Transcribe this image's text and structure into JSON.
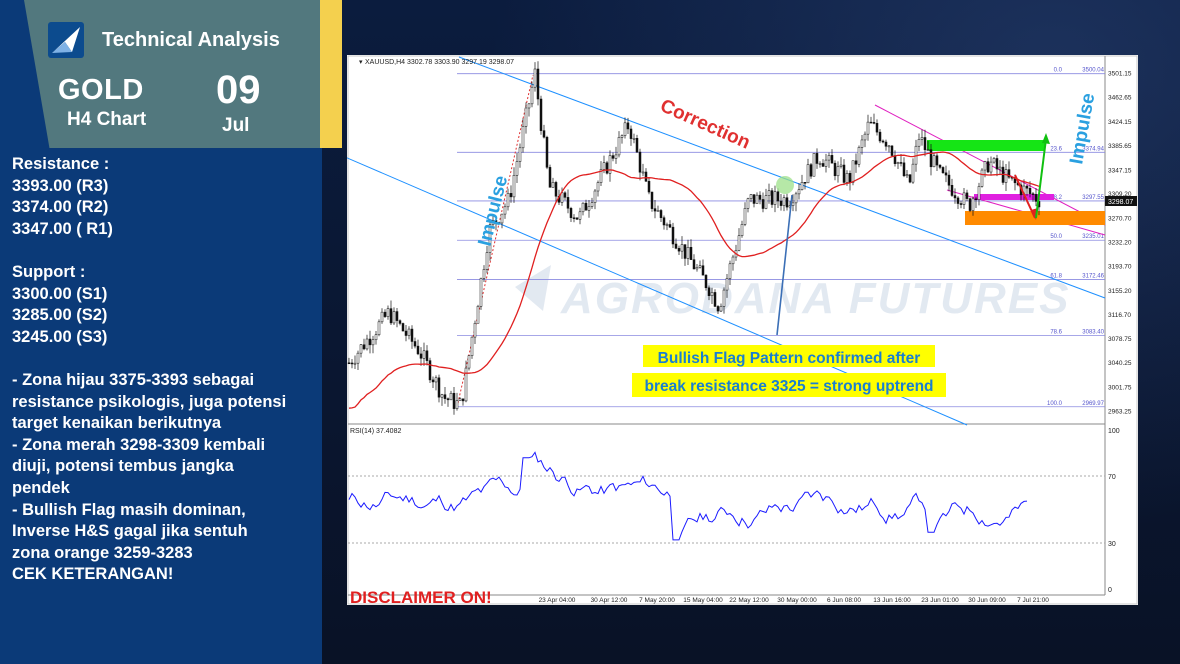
{
  "header": {
    "brand": "Technical Analysis",
    "instrument": "GOLD",
    "timeframe": "H4 Chart",
    "day": "09",
    "month": "Jul",
    "accent_color": "#f4d04e",
    "card_color": "#52787e",
    "logo_icon": "triangle-logo-icon"
  },
  "notes": {
    "resistance_title": "Resistance :",
    "resistance": [
      "3393.00 (R3)",
      "3374.00 (R2)",
      "3347.00 ( R1)"
    ],
    "support_title": "Support :",
    "support": [
      "3300.00 (S1)",
      "3285.00 (S2)",
      "3245.00 (S3)"
    ],
    "commentary": [
      "- Zona hijau 3375-3393 sebagai",
      "resistance psikologis, juga potensi",
      "target kenaikan berikutnya",
      "- Zona merah 3298-3309 kembali",
      "diuji, potensi tembus jangka",
      "pendek",
      "- Bullish Flag masih dominan,",
      "Inverse H&S gagal jika sentuh",
      "zona orange 3259-3283",
      "CEK KETERANGAN!"
    ]
  },
  "chart": {
    "symbol_header": "XAUUSD,H4  3302.78 3303.90 3297.19 3298.07",
    "watermark": "AGRODANA FUTURES",
    "current_price": "3298.07",
    "price_axis": [
      "3501.15",
      "3462.65",
      "3424.15",
      "3385.65",
      "3347.15",
      "3309.20",
      "3270.70",
      "3232.20",
      "3193.70",
      "3155.20",
      "3116.70",
      "3078.75",
      "3040.25",
      "3001.75",
      "2963.25"
    ],
    "fib_levels": [
      {
        "pct": "0.0",
        "price": "3500.04"
      },
      {
        "pct": "23.6",
        "price": "3374.94"
      },
      {
        "pct": "38.2",
        "price": "3297.55"
      },
      {
        "pct": "50.0",
        "price": "3235.01"
      },
      {
        "pct": "61.8",
        "price": "3172.46"
      },
      {
        "pct": "78.6",
        "price": "3083.40"
      },
      {
        "pct": "100.0",
        "price": "2969.97"
      }
    ],
    "annotations": {
      "impulse_left": "Impulse",
      "correction": "Correction",
      "impulse_right": "Impulse",
      "flag_line1": "Bullish Flag Pattern confirmed after",
      "flag_line2": "break resistance 3325 = strong uptrend",
      "disclaimer": "DISCLAIMER ON!"
    },
    "time_axis": [
      "23 Apr 04:00",
      "30 Apr 12:00",
      "7 May 20:00",
      "15 May 04:00",
      "22 May 12:00",
      "30 May 00:00",
      "6 Jun 08:00",
      "13 Jun 16:00",
      "23 Jun 01:00",
      "30 Jun 09:00",
      "7 Jul 21:00"
    ],
    "rsi": {
      "label": "RSI(14) 37.4082",
      "levels": [
        "100",
        "70",
        "30",
        "0"
      ]
    },
    "colors": {
      "zone_green": "#15e515",
      "zone_magenta": "#e020e0",
      "zone_orange": "#ff8a00",
      "channel": "#1e90ff",
      "ma": "#e02020",
      "rsi_line": "#1a1aff",
      "annotation_blue": "#2aa0e0",
      "annotation_red": "#e03030",
      "callout_bg": "#ffff00"
    }
  }
}
